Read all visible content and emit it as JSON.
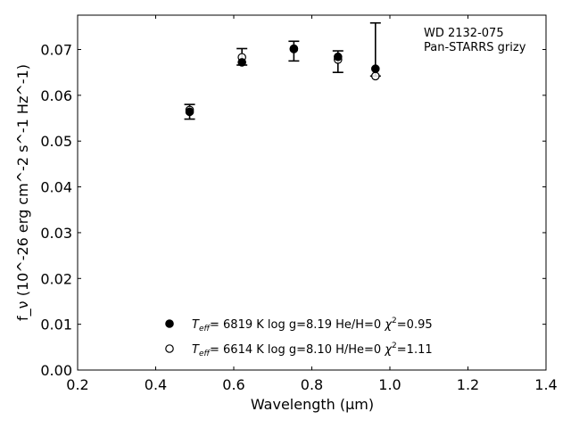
{
  "chart_data": {
    "type": "scatter",
    "annotation": [
      "WD 2132-075",
      "Pan-STARRS grizy"
    ],
    "xlabel": "Wavelength (μm)",
    "ylabel": "f_ν (10^-26 erg cm^-2 s^-1 Hz^-1)",
    "xlim": [
      0.2,
      1.4
    ],
    "ylim": [
      0.0,
      0.0775
    ],
    "xticks": [
      0.2,
      0.4,
      0.6,
      0.8,
      1.0,
      1.2,
      1.4
    ],
    "xtick_labels": [
      "0.2",
      "0.4",
      "0.6",
      "0.8",
      "1.0",
      "1.2",
      "1.4"
    ],
    "yticks": [
      0.0,
      0.01,
      0.02,
      0.03,
      0.04,
      0.05,
      0.06,
      0.07
    ],
    "ytick_labels": [
      "0.00",
      "0.01",
      "0.02",
      "0.03",
      "0.04",
      "0.05",
      "0.06",
      "0.07"
    ],
    "grid": false,
    "legend_position": "bottom-center",
    "observed": {
      "x": [
        0.487,
        0.621,
        0.754,
        0.867,
        0.963
      ],
      "y": [
        0.0564,
        0.0672,
        0.0702,
        0.0684,
        0.0658
      ],
      "err_low": [
        0.0016,
        0.0006,
        0.0027,
        0.0034,
        0.0016
      ],
      "err_high": [
        0.0016,
        0.003,
        0.0016,
        0.0013,
        0.01
      ]
    },
    "series": [
      {
        "name": "T_eff= 6819 K log g=8.19 He/H=0 χ²=0.95",
        "legend": {
          "teff_label": "T",
          "teff_sub": "eff",
          "teff_value": "6819 K",
          "logg": "log g=8.19",
          "comp": "He/H=0",
          "chi_label": "χ",
          "chi_sup": "2",
          "chi_value": "=0.95"
        },
        "marker": "filled-circle",
        "x": [
          0.487,
          0.621,
          0.754,
          0.867,
          0.963
        ],
        "y": [
          0.0564,
          0.0672,
          0.0702,
          0.0684,
          0.0658
        ]
      },
      {
        "name": "T_eff= 6614 K log g=8.10 H/He=0 χ²=1.11",
        "legend": {
          "teff_label": "T",
          "teff_sub": "eff",
          "teff_value": "6614 K",
          "logg": "log g=8.10",
          "comp": "H/He=0",
          "chi_label": "χ",
          "chi_sup": "2",
          "chi_value": "=1.11"
        },
        "marker": "open-circle",
        "x": [
          0.487,
          0.621,
          0.754,
          0.867,
          0.963
        ],
        "y": [
          0.0568,
          0.0683,
          0.0701,
          0.0678,
          0.0642
        ]
      }
    ],
    "colors": {
      "marker": "#000000",
      "axis": "#000000",
      "background": "#ffffff"
    }
  }
}
